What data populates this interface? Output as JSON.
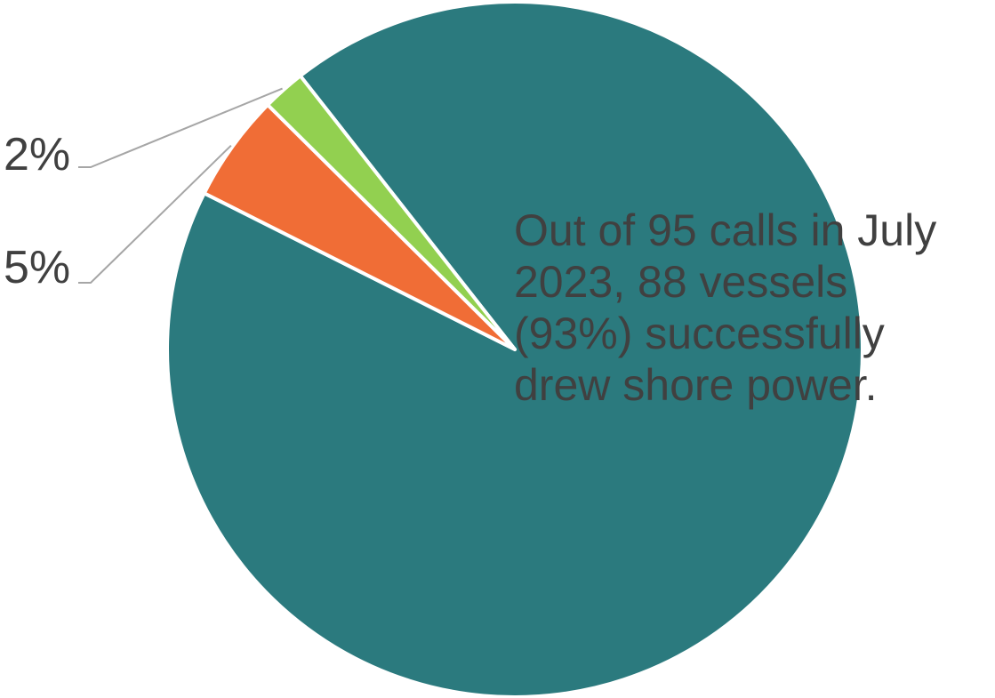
{
  "chart_data": {
    "type": "pie",
    "slices": [
      {
        "value": 93,
        "color": "#2B7A7E"
      },
      {
        "value": 5,
        "label": "5%",
        "color": "#F06D36"
      },
      {
        "value": 2,
        "label": "2%",
        "color": "#92D050"
      }
    ],
    "annotation": [
      "Out of 95 calls in July",
      "2023, 88 vessels",
      "(93%) successfully",
      "drew shore power."
    ]
  }
}
